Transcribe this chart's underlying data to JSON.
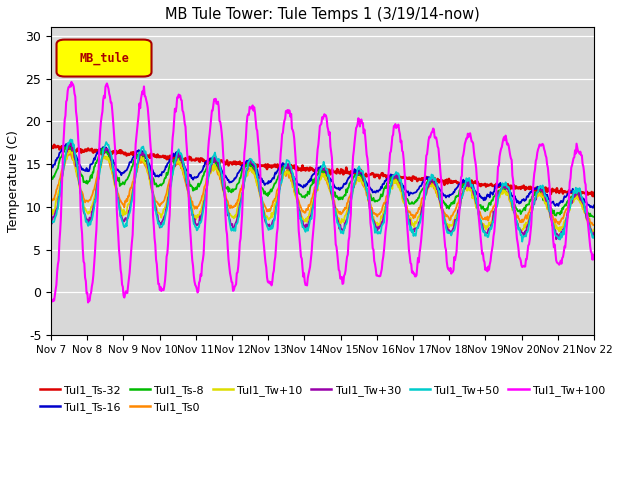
{
  "title": "MB Tule Tower: Tule Temps 1 (3/19/14-now)",
  "ylabel": "Temperature (C)",
  "xlim": [
    0,
    15
  ],
  "ylim": [
    -5,
    31
  ],
  "yticks": [
    -5,
    0,
    5,
    10,
    15,
    20,
    25,
    30
  ],
  "x_labels": [
    "Nov 7",
    "Nov 8",
    "Nov 9",
    "Nov 10",
    "Nov 11",
    "Nov 12",
    "Nov 13",
    "Nov 14",
    "Nov 15",
    "Nov 16",
    "Nov 17",
    "Nov 18",
    "Nov 19",
    "Nov 20",
    "Nov 21",
    "Nov 22"
  ],
  "legend_label": "MB_tule",
  "legend_box_facecolor": "#ffff00",
  "legend_box_edgecolor": "#aa0000",
  "lines": [
    {
      "label": "Tul1_Ts-32",
      "color": "#dd0000",
      "lw": 1.8
    },
    {
      "label": "Tul1_Ts-16",
      "color": "#0000cc",
      "lw": 1.3
    },
    {
      "label": "Tul1_Ts-8",
      "color": "#00bb00",
      "lw": 1.3
    },
    {
      "label": "Tul1_Ts0",
      "color": "#ff8800",
      "lw": 1.3
    },
    {
      "label": "Tul1_Tw+10",
      "color": "#dddd00",
      "lw": 1.3
    },
    {
      "label": "Tul1_Tw+30",
      "color": "#9900aa",
      "lw": 1.3
    },
    {
      "label": "Tul1_Tw+50",
      "color": "#00cccc",
      "lw": 1.3
    },
    {
      "label": "Tul1_Tw+100",
      "color": "#ff00ff",
      "lw": 1.5
    }
  ],
  "bg_color": "#d8d8d8",
  "fig_bg": "#ffffff"
}
